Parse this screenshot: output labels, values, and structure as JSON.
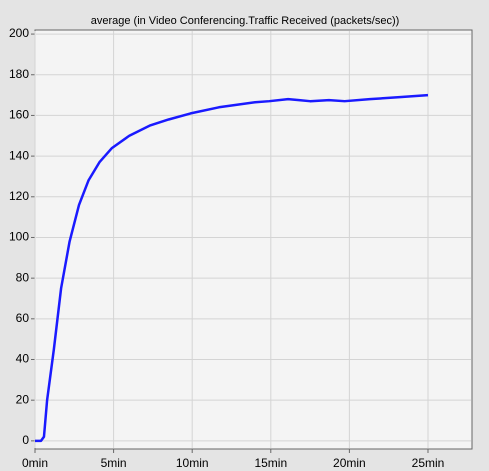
{
  "chart_data": {
    "type": "line",
    "title": "average (in Video Conferencing.Traffic Received (packets/sec))",
    "x": [
      0,
      0.38,
      0.57,
      0.77,
      1.2,
      1.66,
      2.2,
      2.8,
      3.4,
      4.1,
      4.9,
      6.0,
      7.3,
      8.5,
      9.9,
      11.7,
      14.0,
      14.9,
      16.1,
      16.8,
      17.5,
      18.7,
      19.7,
      21.3,
      23.2,
      25.0
    ],
    "series": [
      {
        "name": "average",
        "color": "#1a1aff",
        "values": [
          0,
          0,
          2,
          20,
          45,
          75,
          98,
          116,
          128,
          137,
          144,
          150,
          155,
          158,
          161,
          164,
          166.5,
          167,
          168,
          167.5,
          167,
          167.5,
          167,
          168,
          169,
          170
        ]
      }
    ],
    "xlim": [
      0,
      27.8
    ],
    "ylim": [
      -4,
      202
    ],
    "xticks": [
      {
        "value": 0,
        "label": "0min"
      },
      {
        "value": 5,
        "label": "5min"
      },
      {
        "value": 10,
        "label": "10min"
      },
      {
        "value": 15,
        "label": "15min"
      },
      {
        "value": 20,
        "label": "20min"
      },
      {
        "value": 25,
        "label": "25min"
      }
    ],
    "yticks": [
      0,
      20,
      40,
      60,
      80,
      100,
      120,
      140,
      160,
      180,
      200
    ],
    "grid": true
  }
}
